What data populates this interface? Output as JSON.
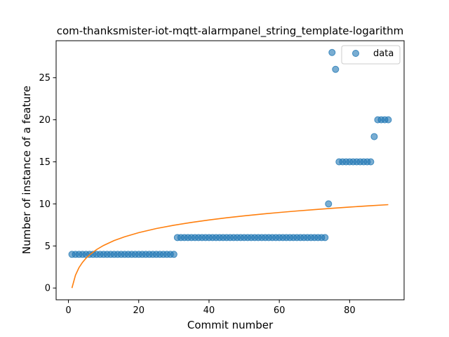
{
  "chart_data": {
    "type": "scatter",
    "title": "com-thanksmister-iot-mqtt-alarmpanel_string_template-logarithm",
    "xlabel": "Commit number",
    "ylabel": "Number of instance of a feature",
    "xlim": [
      -3.5,
      95.5
    ],
    "ylim": [
      -1.4,
      29.4
    ],
    "x_ticks": [
      0,
      20,
      40,
      60,
      80
    ],
    "y_ticks": [
      0,
      5,
      10,
      15,
      20,
      25
    ],
    "legend": {
      "position": "top-right",
      "entries": [
        "data"
      ]
    },
    "series": [
      {
        "name": "data",
        "kind": "scatter",
        "color": "#1f77b4",
        "points": [
          [
            1,
            4
          ],
          [
            2,
            4
          ],
          [
            3,
            4
          ],
          [
            4,
            4
          ],
          [
            5,
            4
          ],
          [
            6,
            4
          ],
          [
            7,
            4
          ],
          [
            8,
            4
          ],
          [
            9,
            4
          ],
          [
            10,
            4
          ],
          [
            11,
            4
          ],
          [
            12,
            4
          ],
          [
            13,
            4
          ],
          [
            14,
            4
          ],
          [
            15,
            4
          ],
          [
            16,
            4
          ],
          [
            17,
            4
          ],
          [
            18,
            4
          ],
          [
            19,
            4
          ],
          [
            20,
            4
          ],
          [
            21,
            4
          ],
          [
            22,
            4
          ],
          [
            23,
            4
          ],
          [
            24,
            4
          ],
          [
            25,
            4
          ],
          [
            26,
            4
          ],
          [
            27,
            4
          ],
          [
            28,
            4
          ],
          [
            29,
            4
          ],
          [
            30,
            4
          ],
          [
            31,
            6
          ],
          [
            32,
            6
          ],
          [
            33,
            6
          ],
          [
            34,
            6
          ],
          [
            35,
            6
          ],
          [
            36,
            6
          ],
          [
            37,
            6
          ],
          [
            38,
            6
          ],
          [
            39,
            6
          ],
          [
            40,
            6
          ],
          [
            41,
            6
          ],
          [
            42,
            6
          ],
          [
            43,
            6
          ],
          [
            44,
            6
          ],
          [
            45,
            6
          ],
          [
            46,
            6
          ],
          [
            47,
            6
          ],
          [
            48,
            6
          ],
          [
            49,
            6
          ],
          [
            50,
            6
          ],
          [
            51,
            6
          ],
          [
            52,
            6
          ],
          [
            53,
            6
          ],
          [
            54,
            6
          ],
          [
            55,
            6
          ],
          [
            56,
            6
          ],
          [
            57,
            6
          ],
          [
            58,
            6
          ],
          [
            59,
            6
          ],
          [
            60,
            6
          ],
          [
            61,
            6
          ],
          [
            62,
            6
          ],
          [
            63,
            6
          ],
          [
            64,
            6
          ],
          [
            65,
            6
          ],
          [
            66,
            6
          ],
          [
            67,
            6
          ],
          [
            68,
            6
          ],
          [
            69,
            6
          ],
          [
            70,
            6
          ],
          [
            71,
            6
          ],
          [
            72,
            6
          ],
          [
            73,
            6
          ],
          [
            74,
            10
          ],
          [
            75,
            28
          ],
          [
            76,
            26
          ],
          [
            77,
            15
          ],
          [
            78,
            15
          ],
          [
            79,
            15
          ],
          [
            80,
            15
          ],
          [
            81,
            15
          ],
          [
            82,
            15
          ],
          [
            83,
            15
          ],
          [
            84,
            15
          ],
          [
            85,
            15
          ],
          [
            86,
            15
          ],
          [
            87,
            18
          ],
          [
            88,
            20
          ],
          [
            89,
            20
          ],
          [
            90,
            20
          ],
          [
            91,
            20
          ]
        ]
      },
      {
        "kind": "line",
        "color": "#ff7f0e",
        "points": [
          [
            1,
            0
          ],
          [
            2,
            1.52
          ],
          [
            3,
            2.42
          ],
          [
            4,
            3.05
          ],
          [
            5,
            3.54
          ],
          [
            6,
            3.93
          ],
          [
            8,
            4.57
          ],
          [
            10,
            5.06
          ],
          [
            13,
            5.64
          ],
          [
            16,
            6.09
          ],
          [
            20,
            6.58
          ],
          [
            25,
            7.07
          ],
          [
            30,
            7.46
          ],
          [
            35,
            7.8
          ],
          [
            40,
            8.09
          ],
          [
            45,
            8.35
          ],
          [
            50,
            8.58
          ],
          [
            55,
            8.79
          ],
          [
            60,
            8.98
          ],
          [
            65,
            9.16
          ],
          [
            70,
            9.32
          ],
          [
            75,
            9.48
          ],
          [
            80,
            9.62
          ],
          [
            85,
            9.76
          ],
          [
            91,
            9.91
          ]
        ]
      }
    ]
  }
}
